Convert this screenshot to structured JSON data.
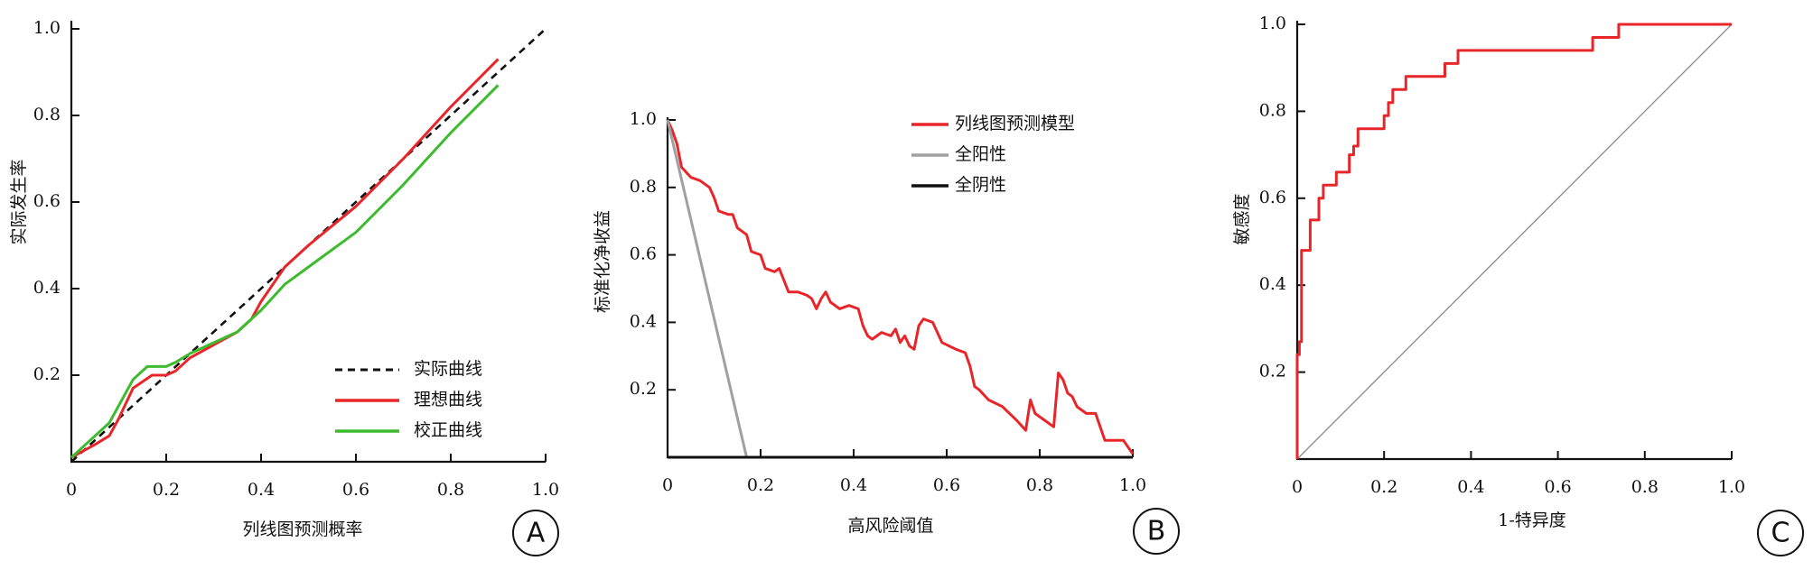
{
  "chart_data": [
    {
      "type": "line",
      "panel_label": "A",
      "xlabel": "列线图预测概率",
      "ylabel": "实际发生率",
      "xlim": [
        0,
        1
      ],
      "ylim": [
        0,
        1
      ],
      "xticks": [
        0,
        0.2,
        0.4,
        0.6,
        0.8,
        {
          "value": 1,
          "label": "1.0"
        }
      ],
      "yticks": [
        0.2,
        0.4,
        0.6,
        0.8,
        {
          "value": 1,
          "label": "1.0"
        }
      ],
      "legend": "lower right",
      "series": [
        {
          "name": "实际曲线",
          "color": "#111111",
          "style": "dashed",
          "x": [
            0,
            1
          ],
          "values": [
            0,
            1
          ]
        },
        {
          "name": "理想曲线",
          "color": "#e8262a",
          "style": "solid",
          "x": [
            0,
            0.05,
            0.08,
            0.1,
            0.13,
            0.17,
            0.2,
            0.22,
            0.25,
            0.3,
            0.35,
            0.38,
            0.4,
            0.45,
            0.5,
            0.6,
            0.7,
            0.8,
            0.9
          ],
          "values": [
            0.01,
            0.04,
            0.06,
            0.1,
            0.17,
            0.2,
            0.2,
            0.21,
            0.24,
            0.27,
            0.3,
            0.33,
            0.37,
            0.45,
            0.5,
            0.59,
            0.7,
            0.82,
            0.93
          ]
        },
        {
          "name": "校正曲线",
          "color": "#3dbb2e",
          "style": "solid",
          "x": [
            0,
            0.05,
            0.08,
            0.1,
            0.13,
            0.16,
            0.2,
            0.22,
            0.25,
            0.3,
            0.35,
            0.4,
            0.45,
            0.5,
            0.6,
            0.7,
            0.8,
            0.9
          ],
          "values": [
            0.01,
            0.06,
            0.09,
            0.13,
            0.19,
            0.22,
            0.22,
            0.23,
            0.25,
            0.275,
            0.3,
            0.35,
            0.41,
            0.45,
            0.53,
            0.64,
            0.76,
            0.87
          ]
        }
      ]
    },
    {
      "type": "line",
      "panel_label": "B",
      "xlabel": "高风险阈值",
      "ylabel": "标准化净收益",
      "xlim": [
        0,
        1
      ],
      "ylim": [
        0,
        1
      ],
      "xticks": [
        0,
        0.2,
        0.4,
        0.6,
        0.8,
        {
          "value": 1,
          "label": "1.0"
        }
      ],
      "yticks": [
        0.2,
        0.4,
        0.6,
        0.8,
        {
          "value": 1,
          "label": "1.0"
        }
      ],
      "legend": "upper right",
      "series": [
        {
          "name": "列线图预测模型",
          "color": "#e8262a",
          "style": "solid",
          "x": [
            0,
            0.01,
            0.02,
            0.03,
            0.05,
            0.07,
            0.09,
            0.1,
            0.11,
            0.13,
            0.14,
            0.15,
            0.17,
            0.18,
            0.2,
            0.21,
            0.23,
            0.24,
            0.26,
            0.28,
            0.3,
            0.31,
            0.32,
            0.33,
            0.34,
            0.35,
            0.37,
            0.39,
            0.41,
            0.42,
            0.43,
            0.44,
            0.46,
            0.48,
            0.49,
            0.5,
            0.51,
            0.52,
            0.53,
            0.54,
            0.55,
            0.57,
            0.59,
            0.62,
            0.64,
            0.65,
            0.66,
            0.67,
            0.69,
            0.72,
            0.75,
            0.77,
            0.78,
            0.79,
            0.81,
            0.83,
            0.84,
            0.85,
            0.86,
            0.87,
            0.88,
            0.9,
            0.92,
            0.94,
            0.98,
            1
          ],
          "values": [
            1,
            0.97,
            0.93,
            0.86,
            0.83,
            0.82,
            0.8,
            0.77,
            0.73,
            0.72,
            0.72,
            0.68,
            0.66,
            0.61,
            0.6,
            0.56,
            0.55,
            0.56,
            0.49,
            0.49,
            0.48,
            0.47,
            0.44,
            0.47,
            0.49,
            0.46,
            0.44,
            0.45,
            0.44,
            0.39,
            0.36,
            0.35,
            0.37,
            0.36,
            0.38,
            0.34,
            0.36,
            0.33,
            0.32,
            0.39,
            0.41,
            0.4,
            0.34,
            0.32,
            0.31,
            0.27,
            0.21,
            0.2,
            0.17,
            0.15,
            0.11,
            0.08,
            0.17,
            0.13,
            0.11,
            0.09,
            0.25,
            0.23,
            0.19,
            0.18,
            0.15,
            0.13,
            0.13,
            0.05,
            0.05,
            0.01
          ]
        },
        {
          "name": "全阳性",
          "color": "#a0a0a0",
          "style": "solid",
          "x": [
            0,
            0.17
          ],
          "values": [
            1,
            0
          ]
        },
        {
          "name": "全阴性",
          "color": "#111111",
          "style": "solid",
          "x": [
            0,
            1
          ],
          "values": [
            0,
            0
          ]
        }
      ]
    },
    {
      "type": "line",
      "panel_label": "C",
      "xlabel": "1-特异度",
      "ylabel": "敏感度",
      "xlim": [
        0,
        1
      ],
      "ylim": [
        0,
        1
      ],
      "xticks": [
        0,
        0.2,
        0.4,
        0.6,
        0.8,
        {
          "value": 1,
          "label": "1.0"
        }
      ],
      "yticks": [
        0.2,
        0.4,
        0.6,
        0.8,
        {
          "value": 1,
          "label": "1.0"
        }
      ],
      "series": [
        {
          "color": "#8a8a8a",
          "style": "thin",
          "x": [
            0,
            1
          ],
          "values": [
            0,
            1
          ]
        },
        {
          "color": "#e8262a",
          "style": "solid",
          "x": [
            0,
            0,
            0.005,
            0.005,
            0.01,
            0.01,
            0.03,
            0.03,
            0.05,
            0.05,
            0.06,
            0.06,
            0.09,
            0.09,
            0.12,
            0.12,
            0.13,
            0.13,
            0.14,
            0.14,
            0.2,
            0.2,
            0.21,
            0.21,
            0.22,
            0.22,
            0.25,
            0.25,
            0.34,
            0.34,
            0.37,
            0.37,
            0.68,
            0.68,
            0.74,
            0.74,
            1
          ],
          "values": [
            0,
            0.24,
            0.24,
            0.27,
            0.27,
            0.48,
            0.48,
            0.55,
            0.55,
            0.6,
            0.6,
            0.63,
            0.63,
            0.66,
            0.66,
            0.7,
            0.7,
            0.72,
            0.72,
            0.76,
            0.76,
            0.79,
            0.79,
            0.82,
            0.82,
            0.85,
            0.85,
            0.88,
            0.88,
            0.91,
            0.91,
            0.94,
            0.94,
            0.97,
            0.97,
            1,
            1
          ]
        }
      ]
    }
  ]
}
